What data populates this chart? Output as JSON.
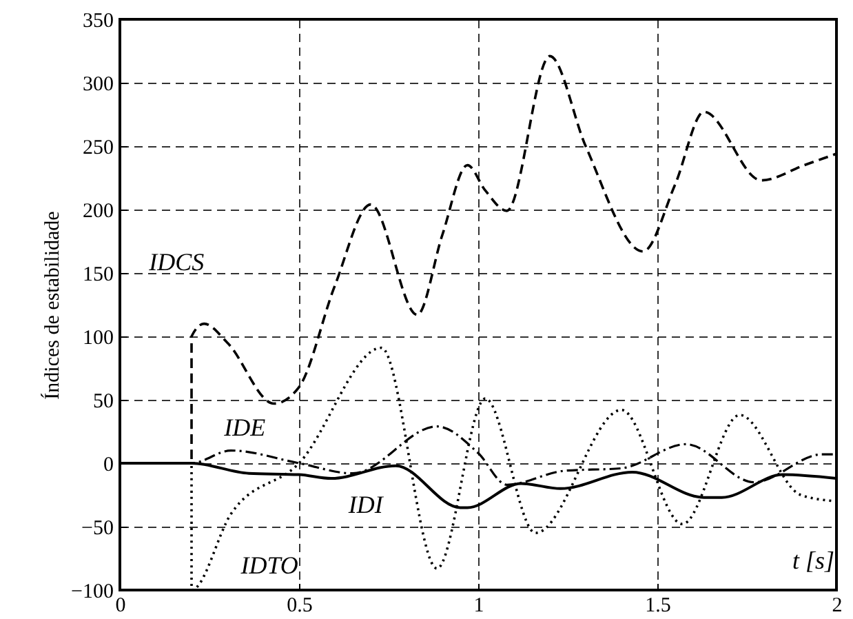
{
  "chart_data": {
    "type": "line",
    "xlabel": "t [s]",
    "ylabel": "Índices de estabilidade",
    "xlim": [
      0,
      2
    ],
    "xticks": [
      0,
      0.5,
      1,
      1.5,
      2
    ],
    "ylim": [
      -100,
      350
    ],
    "yticks": [
      -100,
      -50,
      0,
      50,
      100,
      150,
      200,
      250,
      300,
      350
    ],
    "grid": true,
    "series": [
      {
        "name": "IDCS",
        "color": "#000000",
        "line_style": "dashed",
        "x": [
          0,
          0.2,
          0.2,
          0.235,
          0.3,
          0.43,
          0.5,
          0.6,
          0.7,
          0.83,
          0.9,
          0.97,
          1.02,
          1.08,
          1.2,
          1.3,
          1.46,
          1.55,
          1.63,
          1.79,
          1.91,
          2
        ],
        "values": [
          0,
          0,
          100,
          110,
          95,
          47,
          60,
          140,
          204,
          117,
          180,
          235,
          215,
          199,
          321,
          250,
          167,
          220,
          277,
          223,
          235,
          244
        ]
      },
      {
        "name": "IDE",
        "color": "#000000",
        "line_style": "dashdot",
        "x": [
          0,
          0.2,
          0.31,
          0.5,
          0.65,
          0.885,
          1.0,
          1.08,
          1.24,
          1.4,
          1.58,
          1.77,
          1.96,
          2
        ],
        "values": [
          0,
          0,
          10,
          0,
          -8,
          29,
          8,
          -17,
          -6,
          -4,
          15,
          -15,
          7,
          7
        ]
      },
      {
        "name": "IDI",
        "color": "#000000",
        "line_style": "solid",
        "x": [
          0,
          0.2,
          0.36,
          0.5,
          0.59,
          0.77,
          0.95,
          0.97,
          1.12,
          1.23,
          1.43,
          1.63,
          1.68,
          1.85,
          2
        ],
        "values": [
          0,
          0,
          -8,
          -9,
          -12,
          -2,
          -35,
          -35,
          -16,
          -20,
          -7,
          -27,
          -27,
          -9,
          -12
        ]
      },
      {
        "name": "IDTO",
        "color": "#000000",
        "line_style": "dotted",
        "x": [
          0,
          0.2,
          0.2,
          0.31,
          0.5,
          0.73,
          0.885,
          1.02,
          1.16,
          1.4,
          1.57,
          1.73,
          1.9,
          2
        ],
        "values": [
          0,
          0,
          -100,
          -40,
          0,
          91,
          -83,
          51,
          -55,
          42,
          -48,
          38,
          -25,
          -30
        ]
      }
    ]
  }
}
